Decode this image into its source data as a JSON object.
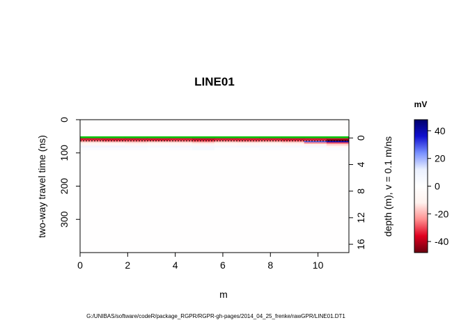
{
  "chart_data": {
    "type": "heatmap",
    "title": "LINE01",
    "xlabel": "m",
    "ylabel": "two-way travel time (ns)",
    "y2label": "depth (m),   v = 0.1 m/ns",
    "xlim": [
      0,
      11.3
    ],
    "ylim": [
      400,
      0
    ],
    "x_ticks": [
      0,
      2,
      4,
      6,
      8,
      10
    ],
    "y_ticks": [
      0,
      100,
      200,
      300
    ],
    "y2_ticks": [
      0,
      4,
      8,
      12,
      16
    ],
    "y2_zero_twt": 55,
    "colorbar": {
      "title": "mV",
      "range": [
        -48,
        48
      ],
      "ticks": [
        40,
        20,
        0,
        -20,
        -40
      ],
      "stops": [
        "#6a0010",
        "#e00020",
        "#ff9090",
        "#fff2ee",
        "#ffffff",
        "#eaf0ff",
        "#7890ff",
        "#1010d0",
        "#00006a"
      ]
    },
    "bands": [
      {
        "twt": [
          50,
          56
        ],
        "values": [
          -4,
          -4,
          -4,
          -4,
          -4,
          -4,
          -4,
          -4,
          -4,
          -4,
          -4,
          -4
        ]
      },
      {
        "twt": [
          56,
          60
        ],
        "values": [
          -40,
          -40,
          -41,
          -40,
          -39,
          -42,
          -40,
          -39,
          -40,
          -41,
          -40,
          -41
        ]
      },
      {
        "twt": [
          60,
          64
        ],
        "values": [
          -30,
          -32,
          -31,
          -32,
          -30,
          -33,
          -30,
          -31,
          -30,
          -32,
          -31,
          -46
        ]
      },
      {
        "twt": [
          64,
          68
        ],
        "values": [
          -20,
          -22,
          -22,
          -20,
          -21,
          -25,
          -20,
          -22,
          -20,
          -22,
          28,
          38
        ]
      },
      {
        "twt": [
          68,
          72
        ],
        "values": [
          -12,
          -12,
          -13,
          -12,
          -12,
          -14,
          -12,
          -12,
          -12,
          -13,
          -25,
          -30
        ]
      },
      {
        "twt": [
          72,
          78
        ],
        "values": [
          -7,
          -6,
          -7,
          -6,
          -7,
          -8,
          -6,
          -7,
          -6,
          -7,
          -12,
          -16
        ]
      },
      {
        "twt": [
          78,
          84
        ],
        "values": [
          7,
          7,
          6,
          5,
          6,
          6,
          5,
          6,
          5,
          5,
          6,
          -8
        ]
      },
      {
        "twt": [
          84,
          92
        ],
        "values": [
          3,
          3,
          3,
          2,
          3,
          5,
          2,
          2,
          3,
          2,
          2,
          3
        ]
      },
      {
        "twt": [
          92,
          400
        ],
        "values": [
          -1,
          -1,
          -1,
          -1,
          -1,
          -1,
          -1,
          -1,
          -1,
          -1,
          -1,
          -1
        ]
      }
    ],
    "surface_lines": [
      {
        "twt": 53,
        "color": "#00c000"
      },
      {
        "twt": 64,
        "color": "#000000"
      }
    ]
  },
  "footer": "G:/UNIBAS/software/codeR/package_RGPR/RGPR-gh-pages/2014_04_25_frenke/rawGPR/LINE01.DT1"
}
